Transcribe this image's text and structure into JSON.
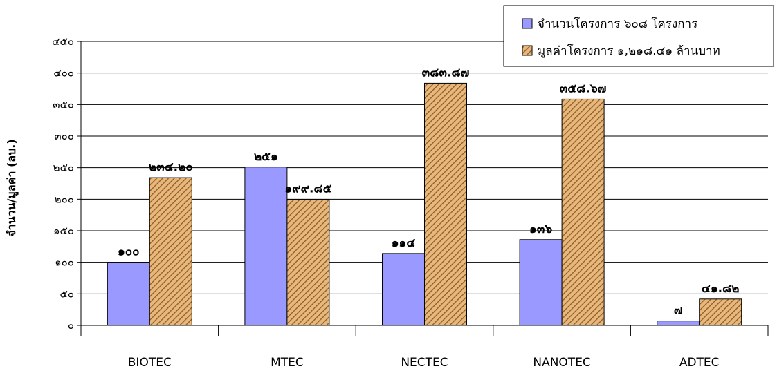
{
  "chart_data": {
    "type": "bar",
    "categories": [
      "BIOTEC",
      "MTEC",
      "NECTEC",
      "NANOTEC",
      "ADTEC"
    ],
    "ylabel": "จำนวน/มูลค่า (ลบ.)",
    "ylim": [
      0,
      450
    ],
    "yticks": [
      0,
      50,
      100,
      150,
      200,
      250,
      300,
      350,
      400,
      450
    ],
    "ytick_labels": [
      "๐",
      "๕๐",
      "๑๐๐",
      "๑๕๐",
      "๒๐๐",
      "๒๕๐",
      "๓๐๐",
      "๓๕๐",
      "๔๐๐",
      "๔๕๐"
    ],
    "grid": true,
    "legend_position": "top-right",
    "series": [
      {
        "name": "จำนวนโครงการ ๖๐๘ โครงการ",
        "values": [
          100,
          251,
          114,
          136,
          7
        ],
        "labels": [
          "๑๐๐",
          "๒๕๑",
          "๑๑๔",
          "๑๓๖",
          "๗"
        ],
        "color": "#9999ff"
      },
      {
        "name": "มูลค่าโครงการ ๑,๒๑๘.๔๑ ล้านบาท",
        "values": [
          234.2,
          199.85,
          383.87,
          358.67,
          41.82
        ],
        "labels": [
          "๒๓๔.๒๐",
          "๑๙๙.๘๕",
          "๓๘๓.๘๗",
          "๓๕๘.๖๗",
          "๔๑.๘๒"
        ],
        "color": "#e8b77a",
        "hatch": "#8b5a2b"
      }
    ]
  }
}
